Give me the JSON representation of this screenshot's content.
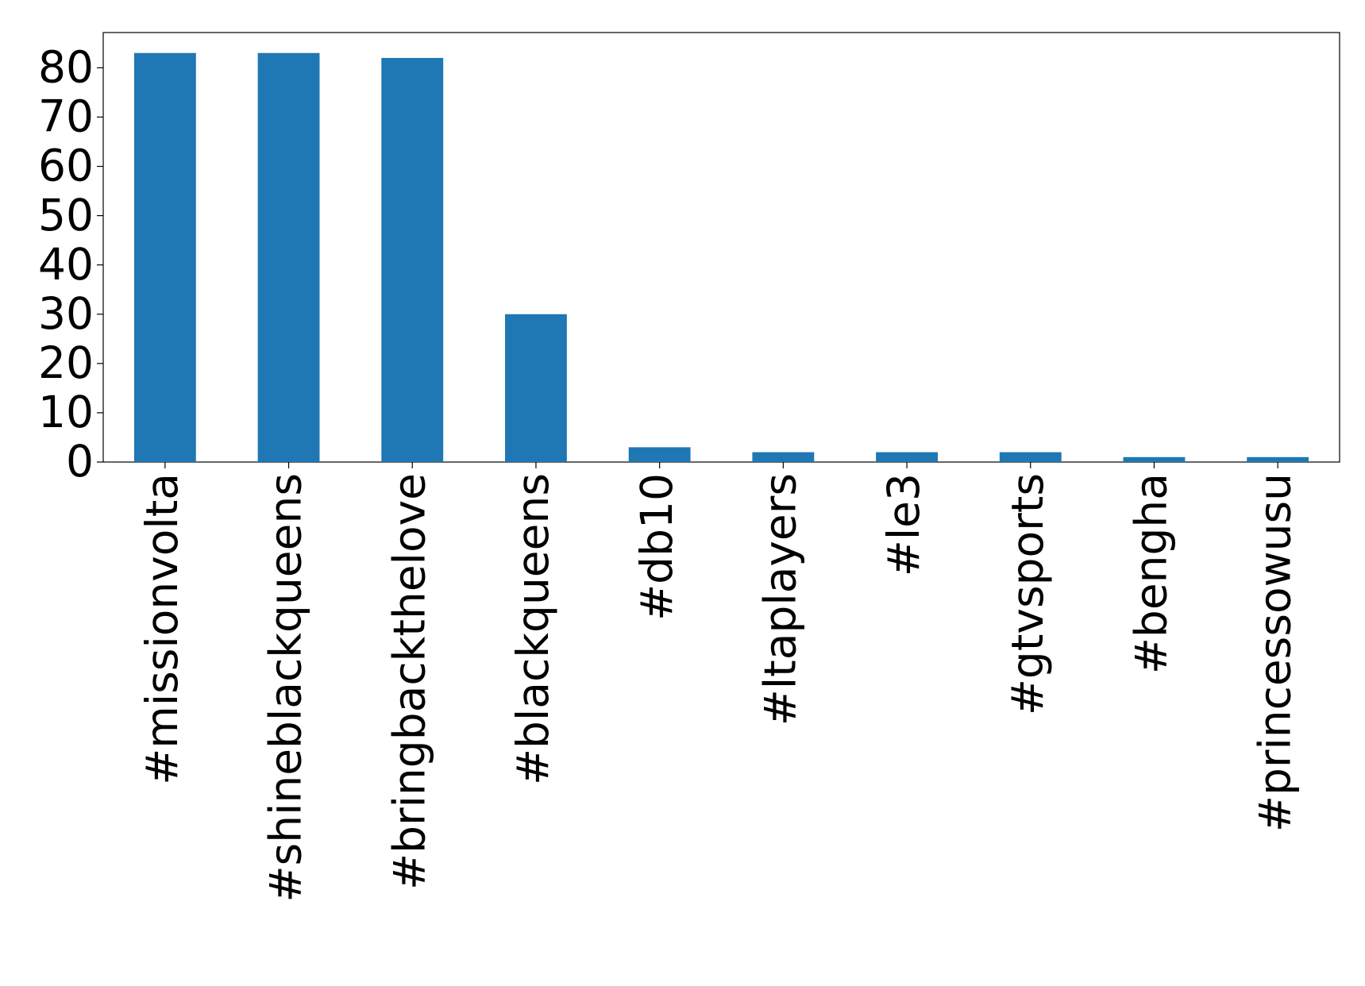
{
  "chart_data": {
    "type": "bar",
    "categories": [
      "#missionvolta",
      "#shineblackqueens",
      "#bringbackthelove",
      "#blackqueens",
      "#db10",
      "#ltaplayers",
      "#le3",
      "#gtvsports",
      "#bengha",
      "#princessowusu"
    ],
    "values": [
      83,
      83,
      82,
      30,
      3,
      2,
      2,
      2,
      1,
      1
    ],
    "color": "#1f77b4",
    "ylim": [
      0,
      87.15
    ],
    "yticks": [
      0,
      10,
      20,
      30,
      40,
      50,
      60,
      70,
      80
    ],
    "grid": false
  }
}
